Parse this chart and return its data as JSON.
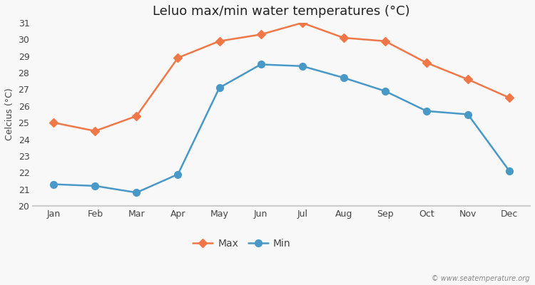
{
  "title": "Leluo max/min water temperatures (°C)",
  "ylabel": "Celcius (°C)",
  "months": [
    "Jan",
    "Feb",
    "Mar",
    "Apr",
    "May",
    "Jun",
    "Jul",
    "Aug",
    "Sep",
    "Oct",
    "Nov",
    "Dec"
  ],
  "max_values": [
    25.0,
    24.5,
    25.4,
    28.9,
    29.9,
    30.3,
    31.0,
    30.1,
    29.9,
    28.6,
    27.6,
    26.5
  ],
  "min_values": [
    21.3,
    21.2,
    20.8,
    21.9,
    27.1,
    28.5,
    28.4,
    27.7,
    26.9,
    25.7,
    25.5,
    22.1
  ],
  "max_color": "#f07848",
  "min_color": "#4898c8",
  "ylim": [
    20,
    31
  ],
  "yticks": [
    20,
    21,
    22,
    23,
    24,
    25,
    26,
    27,
    28,
    29,
    30,
    31
  ],
  "plot_bg_color": "#e8e8e8",
  "grid_color": "#f8f8f8",
  "outer_bg_color": "#f8f8f8",
  "watermark": "© www.seatemperature.org",
  "legend_max": "Max",
  "legend_min": "Min",
  "title_fontsize": 13,
  "label_fontsize": 9,
  "tick_fontsize": 9,
  "marker_size_max": 6,
  "marker_size_min": 7,
  "line_width": 1.8
}
